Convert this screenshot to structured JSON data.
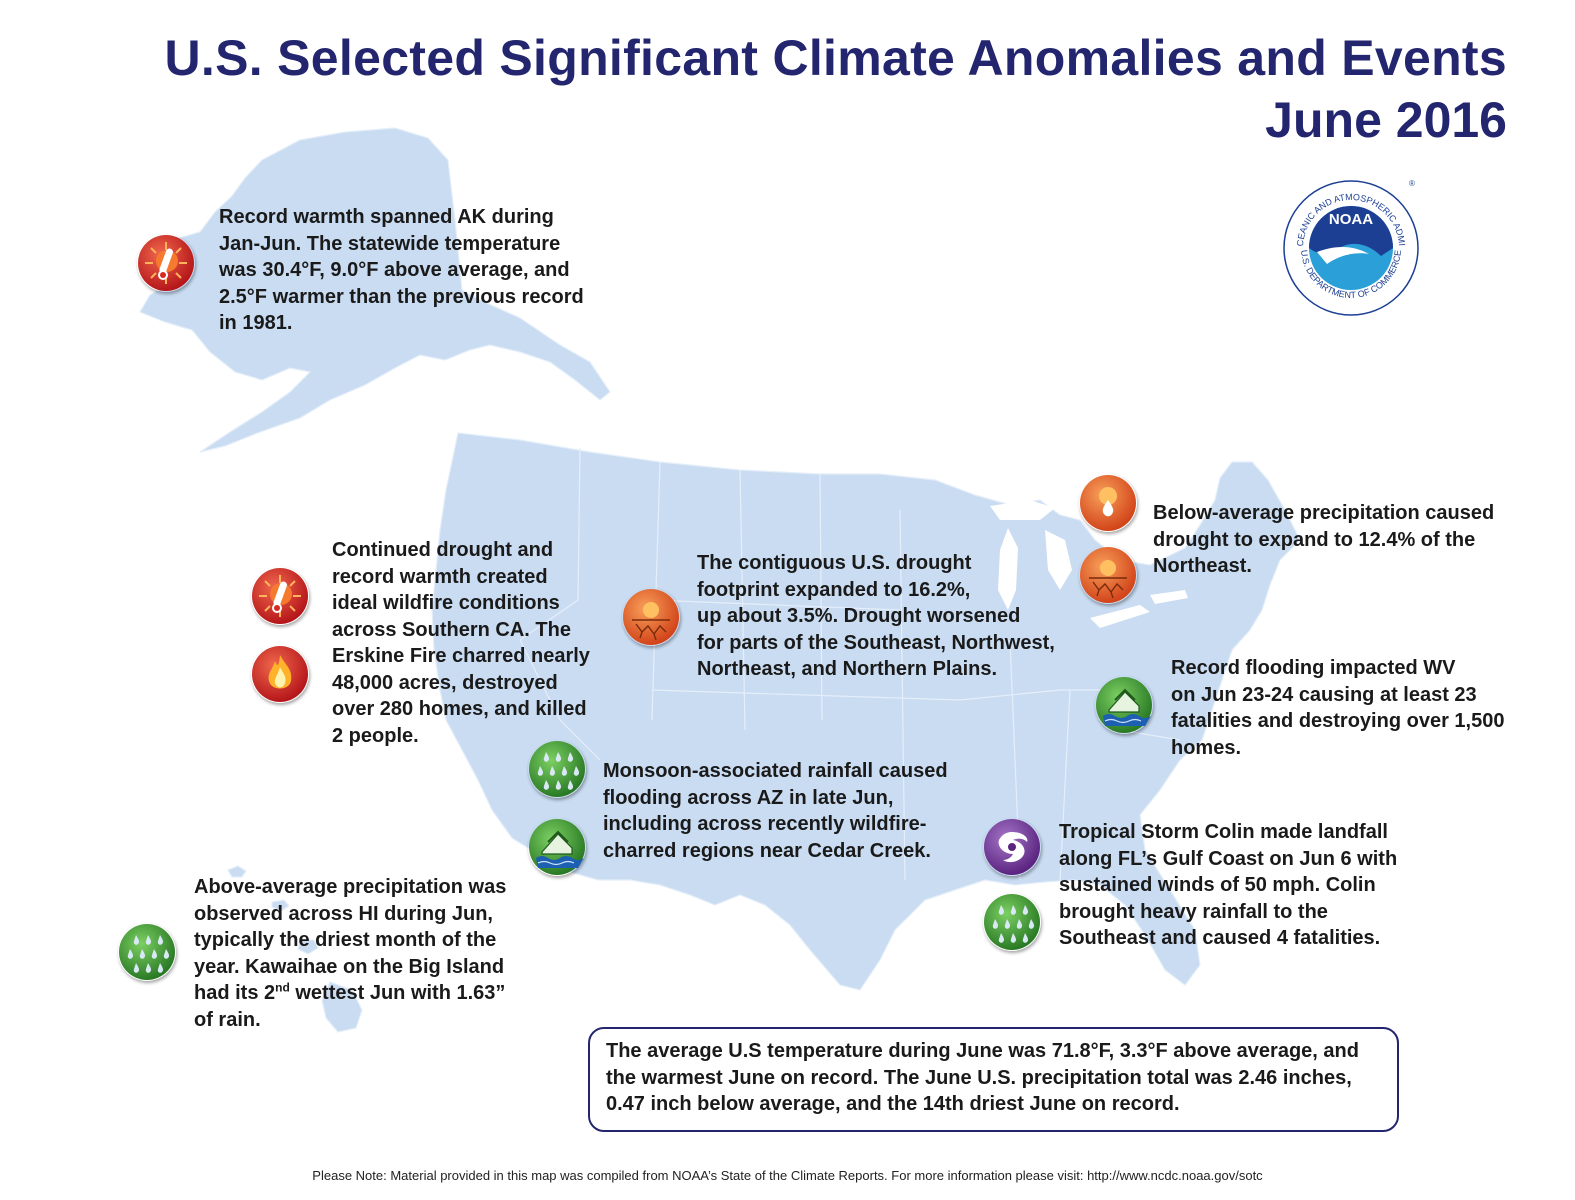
{
  "title": "U.S. Selected Significant Climate Anomalies and Events",
  "subtitle": "June 2016",
  "logo": {
    "text": "NOAA",
    "ring_text": "NATIONAL OCEANIC AND ATMOSPHERIC ADMINISTRATION",
    "ring_text_bottom": "U.S. DEPARTMENT OF COMMERCE",
    "registered": "®"
  },
  "notes": {
    "alaska": "Record warmth spanned AK during\nJan-Jun. The statewide temperature\nwas 30.4°F, 9.0°F above average, and\n2.5°F warmer than the previous record\nin 1981.",
    "california": "Continued drought and\nrecord warmth created\nideal wildfire conditions\nacross Southern CA. The\nErskine Fire charred nearly\n48,000 acres, destroyed\nover 280 homes, and killed\n2 people.",
    "drought": "The contiguous U.S. drought\nfootprint expanded to 16.2%,\nup about 3.5%. Drought worsened\nfor parts of the Southeast, Northwest,\nNortheast, and Northern Plains.",
    "northeast": "Below-average precipitation caused\ndrought to expand to 12.4% of the\nNortheast.",
    "wv": "Record flooding impacted WV\non Jun 23-24 causing at least 23\nfatalities and destroying over 1,500\nhomes.",
    "arizona": "Monsoon-associated rainfall caused\nflooding across AZ in late Jun,\nincluding across recently wildfire-\ncharred regions near Cedar Creek.",
    "colin": "Tropical Storm Colin made landfall\nalong FL’s Gulf Coast on Jun 6 with\nsustained winds of 50 mph. Colin\nbrought heavy rainfall to the\nSoutheast and caused 4 fatalities.",
    "hawaii_pre": "Above-average precipitation was\nobserved across HI during Jun,\ntypically the driest month of the\nyear. Kawaihae on the Big Island\nhad its 2",
    "hawaii_sup": "nd",
    "hawaii_post": " wettest Jun with 1.63”\nof rain."
  },
  "summary": "The average U.S temperature during June was 71.8°F, 3.3°F above average, and the warmest June on record. The June U.S. precipitation total was 2.46 inches, 0.47 inch below average, and the 14th driest June on record.",
  "footer": "Please Note: Material provided in this map was compiled from NOAA’s State of the Climate Reports. For more information please visit: http://www.ncdc.noaa.gov/sotc",
  "icons": [
    {
      "id": "ak-warm",
      "type": "warm-thermometer"
    },
    {
      "id": "ca-warm",
      "type": "warm-thermometer"
    },
    {
      "id": "ca-fire",
      "type": "wildfire"
    },
    {
      "id": "plains-drought",
      "type": "drought"
    },
    {
      "id": "ne-dry",
      "type": "dry-precip"
    },
    {
      "id": "ne-drought",
      "type": "drought"
    },
    {
      "id": "wv-flood",
      "type": "flood"
    },
    {
      "id": "az-rain",
      "type": "heavy-rain"
    },
    {
      "id": "az-flood",
      "type": "flood"
    },
    {
      "id": "fl-storm",
      "type": "tropical-storm"
    },
    {
      "id": "fl-rain",
      "type": "heavy-rain"
    },
    {
      "id": "hi-rain",
      "type": "heavy-rain"
    }
  ],
  "colors": {
    "title": "#23266e",
    "land": "#c9dcf2",
    "warm": "#d42a22",
    "drought": "#e8661e",
    "rain": "#3c9b35",
    "storm": "#6a2e91",
    "noaa_blue": "#1c3f94",
    "noaa_light": "#2a9fd8"
  }
}
